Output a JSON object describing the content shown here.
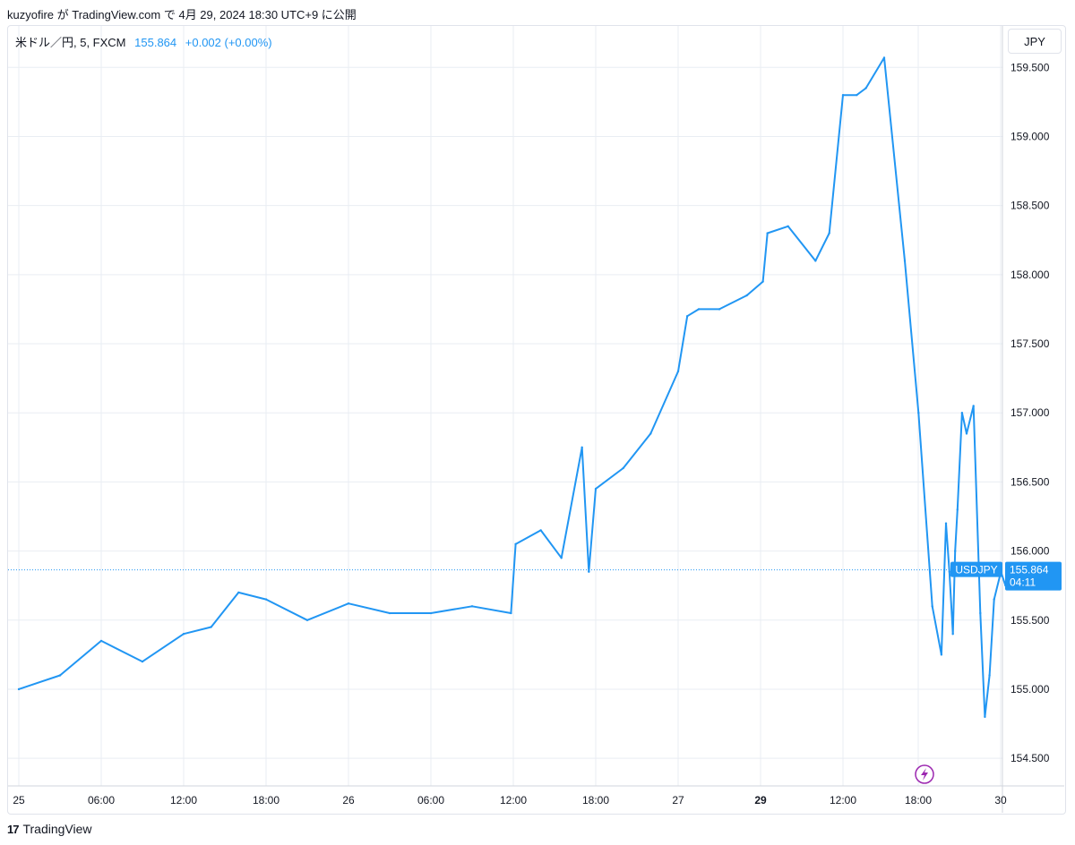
{
  "header": {
    "publish_text": "kuzyofire が TradingView.com で 4月 29, 2024 18:30 UTC+9 に公開"
  },
  "legend": {
    "symbol_text": "米ドル／円, 5, FXCM",
    "price": "155.864",
    "change": "+0.002 (+0.00%)"
  },
  "currency_label": "JPY",
  "footer": {
    "logo_text": "TradingView",
    "logo_icon": "tradingview-logo-icon"
  },
  "price_tag": {
    "symbol": "USDJPY",
    "price": "155.864",
    "countdown": "04:11"
  },
  "colors": {
    "line": "#2196f3",
    "grid": "#e9edf3",
    "text": "#131722",
    "lightning": "#9c27b0"
  },
  "chart_data": {
    "type": "line",
    "title": "",
    "xlabel": "",
    "ylabel": "",
    "series": [
      {
        "name": "USDJPY",
        "x": [
          "25 00:00",
          "25 03:00",
          "25 06:00",
          "25 09:00",
          "25 12:00",
          "25 14:00",
          "25 16:00",
          "25 18:00",
          "25 21:00",
          "26 00:00",
          "26 03:00",
          "26 06:00",
          "26 09:00",
          "26 11:50",
          "26 12:10",
          "26 14:00",
          "26 15:30",
          "26 17:00",
          "26 17:30",
          "26 18:00",
          "26 20:00",
          "26 22:00",
          "27 00:00",
          "27 00:40",
          "27 01:30",
          "27 03:00",
          "27 05:00",
          "27 06:10",
          "29 00:30",
          "29 02:00",
          "29 04:00",
          "29 05:00",
          "29 06:00",
          "29 07:00",
          "29 07:40",
          "29 09:00",
          "29 10:30",
          "29 11:30",
          "29 12:30",
          "29 13:10",
          "29 13:30",
          "29 13:45",
          "29 14:00",
          "29 14:10",
          "29 14:20",
          "29 14:40",
          "29 15:00",
          "29 15:30",
          "29 16:00",
          "29 16:20",
          "29 16:40",
          "29 17:00",
          "29 17:30",
          "29 17:50",
          "29 18:10",
          "29 18:30"
        ],
        "values": [
          155.0,
          155.1,
          155.35,
          155.2,
          155.4,
          155.45,
          155.7,
          155.65,
          155.5,
          155.62,
          155.55,
          155.55,
          155.6,
          155.55,
          156.05,
          156.15,
          155.95,
          156.75,
          155.85,
          156.45,
          156.6,
          156.85,
          157.3,
          157.7,
          157.75,
          157.75,
          157.85,
          157.95,
          158.3,
          158.35,
          158.1,
          158.3,
          159.3,
          159.3,
          159.35,
          159.57,
          158.1,
          157.0,
          155.6,
          155.25,
          156.2,
          155.85,
          155.4,
          156.0,
          156.3,
          157.0,
          156.85,
          157.05,
          155.55,
          154.8,
          155.1,
          155.65,
          155.85,
          155.75,
          155.87,
          155.864
        ]
      }
    ],
    "x_tick_labels": [
      "25",
      "06:00",
      "12:00",
      "18:00",
      "26",
      "06:00",
      "12:00",
      "18:00",
      "27",
      "29",
      "12:00",
      "18:00",
      "30"
    ],
    "y_tick_labels": [
      "159.500",
      "159.000",
      "158.500",
      "158.000",
      "157.500",
      "157.000",
      "156.500",
      "156.000",
      "155.500",
      "155.000",
      "154.500"
    ],
    "ylim": [
      154.3,
      159.8
    ],
    "last_price": 155.864,
    "grid": true,
    "legend": "top-left"
  }
}
